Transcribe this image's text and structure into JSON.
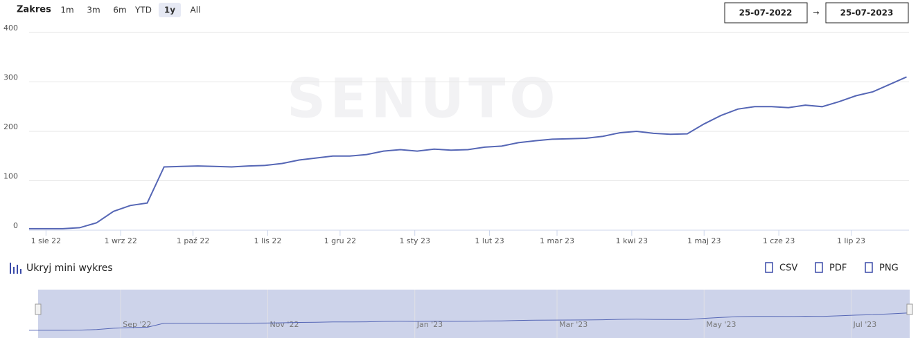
{
  "toolbar": {
    "range_label": "Zakres",
    "range_buttons": [
      "1m",
      "3m",
      "6m",
      "YTD",
      "1y",
      "All"
    ],
    "selected": "1y",
    "date_from": "25-07-2022",
    "date_arrow": "→",
    "date_to": "25-07-2023"
  },
  "mini_toggle": "Ukryj mini wykres",
  "exports": [
    "CSV",
    "PDF",
    "PNG"
  ],
  "watermark": "SENUTO",
  "chart_data": {
    "type": "line",
    "grid": true,
    "x": [
      "2022-07-25",
      "2022-08-01",
      "2022-08-08",
      "2022-08-15",
      "2022-08-22",
      "2022-08-29",
      "2022-09-05",
      "2022-09-12",
      "2022-09-19",
      "2022-09-26",
      "2022-10-03",
      "2022-10-10",
      "2022-10-17",
      "2022-10-24",
      "2022-10-31",
      "2022-11-07",
      "2022-11-14",
      "2022-11-21",
      "2022-11-28",
      "2022-12-05",
      "2022-12-12",
      "2022-12-19",
      "2022-12-26",
      "2023-01-02",
      "2023-01-09",
      "2023-01-16",
      "2023-01-23",
      "2023-01-30",
      "2023-02-06",
      "2023-02-13",
      "2023-02-20",
      "2023-02-27",
      "2023-03-06",
      "2023-03-13",
      "2023-03-20",
      "2023-03-27",
      "2023-04-03",
      "2023-04-10",
      "2023-04-17",
      "2023-04-24",
      "2023-05-01",
      "2023-05-08",
      "2023-05-15",
      "2023-05-22",
      "2023-05-29",
      "2023-06-05",
      "2023-06-12",
      "2023-06-19",
      "2023-06-26",
      "2023-07-03",
      "2023-07-10",
      "2023-07-17",
      "2023-07-24"
    ],
    "series": [
      {
        "color": "#5566b5",
        "values": [
          3,
          3,
          3,
          5,
          15,
          38,
          50,
          55,
          128,
          129,
          130,
          129,
          128,
          130,
          131,
          135,
          142,
          146,
          150,
          150,
          153,
          160,
          163,
          160,
          164,
          162,
          163,
          168,
          170,
          177,
          181,
          184,
          185,
          186,
          190,
          197,
          200,
          196,
          194,
          195,
          215,
          232,
          245,
          250,
          250,
          248,
          253,
          250,
          260,
          272,
          280,
          295,
          310
        ]
      }
    ],
    "xlim": [
      "2022-07-25",
      "2023-07-25"
    ],
    "xticks": [
      {
        "value": "2022-08-01",
        "label": "1 sie 22"
      },
      {
        "value": "2022-09-01",
        "label": "1 wrz 22"
      },
      {
        "value": "2022-10-01",
        "label": "1 paź 22"
      },
      {
        "value": "2022-11-01",
        "label": "1 lis 22"
      },
      {
        "value": "2022-12-01",
        "label": "1 gru 22"
      },
      {
        "value": "2023-01-01",
        "label": "1 sty 23"
      },
      {
        "value": "2023-02-01",
        "label": "1 lut 23"
      },
      {
        "value": "2023-03-01",
        "label": "1 mar 23"
      },
      {
        "value": "2023-04-01",
        "label": "1 kwi 23"
      },
      {
        "value": "2023-05-01",
        "label": "1 maj 23"
      },
      {
        "value": "2023-06-01",
        "label": "1 cze 23"
      },
      {
        "value": "2023-07-01",
        "label": "1 lip 23"
      }
    ],
    "ylim": [
      0,
      400
    ],
    "yticks": [
      0,
      100,
      200,
      300,
      400
    ],
    "navigator_xticks": [
      {
        "value": "2022-09-01",
        "label": "Sep '22"
      },
      {
        "value": "2022-11-01",
        "label": "Nov '22"
      },
      {
        "value": "2023-01-01",
        "label": "Jan '23"
      },
      {
        "value": "2023-03-01",
        "label": "Mar '23"
      },
      {
        "value": "2023-05-01",
        "label": "May '23"
      },
      {
        "value": "2023-07-01",
        "label": "Jul '23"
      }
    ]
  }
}
